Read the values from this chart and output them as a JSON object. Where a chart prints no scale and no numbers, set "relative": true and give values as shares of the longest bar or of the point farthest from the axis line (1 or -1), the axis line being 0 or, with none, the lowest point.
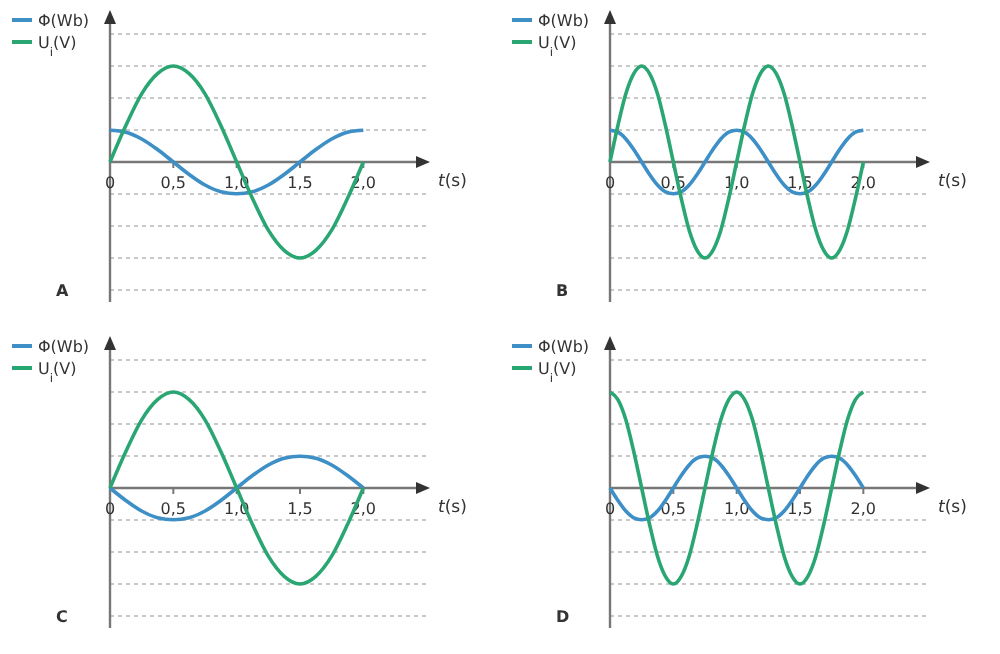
{
  "chart_data": [
    {
      "type": "line",
      "title": "A",
      "xlabel": "t(s)",
      "relative": true,
      "grid": "y",
      "legend": "top left",
      "xlim": [
        0,
        2.4
      ],
      "xticks": [
        {
          "value": 0,
          "label": "0"
        },
        {
          "value": 0.5,
          "label": "0,5"
        },
        {
          "value": 1,
          "label": "1,0"
        },
        {
          "value": 1.5,
          "label": "1,5"
        },
        {
          "value": 2,
          "label": "2,0"
        }
      ],
      "x": [
        0,
        0.125,
        0.25,
        0.375,
        0.5,
        0.625,
        0.75,
        0.875,
        1,
        1.125,
        1.25,
        1.375,
        1.5,
        1.625,
        1.75,
        1.875,
        2
      ],
      "series": [
        {
          "name": "Φ(Wb)",
          "color": "#3d8fc6",
          "values": [
            0.33,
            0.31,
            0.24,
            0.13,
            0,
            -0.13,
            -0.24,
            -0.31,
            -0.33,
            -0.31,
            -0.24,
            -0.13,
            0,
            0.13,
            0.24,
            0.31,
            0.33
          ]
        },
        {
          "name": "U$_{i}$(V)",
          "color": "#2aa673",
          "values": [
            0,
            0.38,
            0.71,
            0.92,
            1,
            0.92,
            0.71,
            0.38,
            0,
            -0.38,
            -0.71,
            -0.92,
            -1,
            -0.92,
            -0.71,
            -0.38,
            0
          ]
        }
      ]
    },
    {
      "type": "line",
      "title": "B",
      "xlabel": "t(s)",
      "relative": true,
      "grid": "y",
      "legend": "top left",
      "xlim": [
        0,
        2.4
      ],
      "xticks": [
        {
          "value": 0,
          "label": "0"
        },
        {
          "value": 0.5,
          "label": "0,5"
        },
        {
          "value": 1,
          "label": "1,0"
        },
        {
          "value": 1.5,
          "label": "1,5"
        },
        {
          "value": 2,
          "label": "2,0"
        }
      ],
      "x": [
        0,
        0.0625,
        0.125,
        0.1875,
        0.25,
        0.3125,
        0.375,
        0.4375,
        0.5,
        0.5625,
        0.625,
        0.6875,
        0.75,
        0.8125,
        0.875,
        0.9375,
        1,
        1.0625,
        1.125,
        1.1875,
        1.25,
        1.3125,
        1.375,
        1.4375,
        1.5,
        1.5625,
        1.625,
        1.6875,
        1.75,
        1.8125,
        1.875,
        1.9375,
        2
      ],
      "series": [
        {
          "name": "Φ(Wb)",
          "color": "#3d8fc6",
          "values": [
            0.33,
            0.31,
            0.24,
            0.13,
            0,
            -0.13,
            -0.24,
            -0.31,
            -0.33,
            -0.31,
            -0.24,
            -0.13,
            0,
            0.13,
            0.24,
            0.31,
            0.33,
            0.31,
            0.24,
            0.13,
            0,
            -0.13,
            -0.24,
            -0.31,
            -0.33,
            -0.31,
            -0.24,
            -0.13,
            0,
            0.13,
            0.24,
            0.31,
            0.33
          ]
        },
        {
          "name": "U$_{i}$(V)",
          "color": "#2aa673",
          "values": [
            0,
            0.38,
            0.71,
            0.92,
            1,
            0.92,
            0.71,
            0.38,
            0,
            -0.38,
            -0.71,
            -0.92,
            -1,
            -0.92,
            -0.71,
            -0.38,
            0,
            0.38,
            0.71,
            0.92,
            1,
            0.92,
            0.71,
            0.38,
            0,
            -0.38,
            -0.71,
            -0.92,
            -1,
            -0.92,
            -0.71,
            -0.38,
            0
          ]
        }
      ]
    },
    {
      "type": "line",
      "title": "C",
      "xlabel": "t(s)",
      "relative": true,
      "grid": "y",
      "legend": "top left",
      "xlim": [
        0,
        2.4
      ],
      "xticks": [
        {
          "value": 0,
          "label": "0"
        },
        {
          "value": 0.5,
          "label": "0,5"
        },
        {
          "value": 1,
          "label": "1,0"
        },
        {
          "value": 1.5,
          "label": "1,5"
        },
        {
          "value": 2,
          "label": "2,0"
        }
      ],
      "x": [
        0,
        0.125,
        0.25,
        0.375,
        0.5,
        0.625,
        0.75,
        0.875,
        1,
        1.125,
        1.25,
        1.375,
        1.5,
        1.625,
        1.75,
        1.875,
        2
      ],
      "series": [
        {
          "name": "Φ(Wb)",
          "color": "#3d8fc6",
          "values": [
            0,
            -0.13,
            -0.24,
            -0.31,
            -0.33,
            -0.31,
            -0.24,
            -0.13,
            0,
            0.13,
            0.24,
            0.31,
            0.33,
            0.31,
            0.24,
            0.13,
            0
          ]
        },
        {
          "name": "U$_{i}$(V)",
          "color": "#2aa673",
          "values": [
            0,
            0.38,
            0.71,
            0.92,
            1,
            0.92,
            0.71,
            0.38,
            0,
            -0.38,
            -0.71,
            -0.92,
            -1,
            -0.92,
            -0.71,
            -0.38,
            0
          ]
        }
      ]
    },
    {
      "type": "line",
      "title": "D",
      "xlabel": "t(s)",
      "relative": true,
      "grid": "y",
      "legend": "top left",
      "xlim": [
        0,
        2.4
      ],
      "xticks": [
        {
          "value": 0,
          "label": "0"
        },
        {
          "value": 0.5,
          "label": "0,5"
        },
        {
          "value": 1,
          "label": "1,0"
        },
        {
          "value": 1.5,
          "label": "1,5"
        },
        {
          "value": 2,
          "label": "2,0"
        }
      ],
      "x": [
        0,
        0.0625,
        0.125,
        0.1875,
        0.25,
        0.3125,
        0.375,
        0.4375,
        0.5,
        0.5625,
        0.625,
        0.6875,
        0.75,
        0.8125,
        0.875,
        0.9375,
        1,
        1.0625,
        1.125,
        1.1875,
        1.25,
        1.3125,
        1.375,
        1.4375,
        1.5,
        1.5625,
        1.625,
        1.6875,
        1.75,
        1.8125,
        1.875,
        1.9375,
        2
      ],
      "series": [
        {
          "name": "Φ(Wb)",
          "color": "#3d8fc6",
          "values": [
            0,
            -0.13,
            -0.24,
            -0.31,
            -0.33,
            -0.31,
            -0.24,
            -0.13,
            0,
            0.13,
            0.24,
            0.31,
            0.33,
            0.31,
            0.24,
            0.13,
            0,
            -0.13,
            -0.24,
            -0.31,
            -0.33,
            -0.31,
            -0.24,
            -0.13,
            0,
            0.13,
            0.24,
            0.31,
            0.33,
            0.31,
            0.24,
            0.13,
            0
          ]
        },
        {
          "name": "U$_{i}$(V)",
          "color": "#2aa673",
          "values": [
            1,
            0.92,
            0.71,
            0.38,
            0,
            -0.38,
            -0.71,
            -0.92,
            -1,
            -0.92,
            -0.71,
            -0.38,
            0,
            0.38,
            0.71,
            0.92,
            1,
            0.92,
            0.71,
            0.38,
            0,
            -0.38,
            -0.71,
            -0.92,
            -1,
            -0.92,
            -0.71,
            -0.38,
            0,
            0.38,
            0.71,
            0.92,
            1
          ]
        }
      ]
    }
  ]
}
